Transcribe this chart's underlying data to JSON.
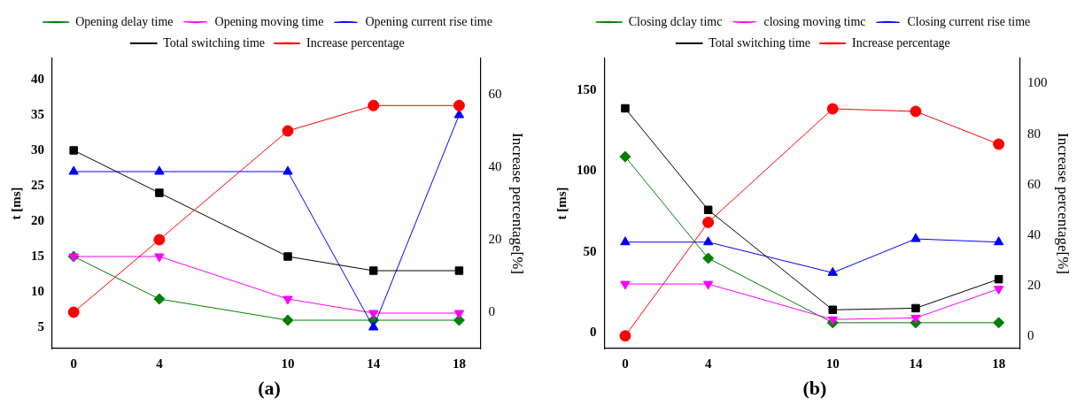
{
  "chart_data": [
    {
      "type": "line",
      "ylabel": "t [ms]",
      "y2label": "Increase percentage[%]",
      "annotations": [
        "(a)"
      ],
      "x": [
        0,
        4,
        10,
        14,
        18
      ],
      "xlim": [
        -1,
        19
      ],
      "xticks": [
        0,
        4,
        10,
        14,
        18
      ],
      "ylim": [
        2,
        43
      ],
      "yticks": [
        5,
        10,
        15,
        20,
        25,
        30,
        35,
        40
      ],
      "y2lim": [
        -10,
        70
      ],
      "y2ticks": [
        0,
        20,
        40,
        60
      ],
      "legend": "top",
      "grid": false,
      "series": [
        {
          "name": "Opening delay time",
          "color": "#008000",
          "marker": "diamond",
          "values": [
            15,
            9,
            6,
            6,
            6
          ]
        },
        {
          "name": "Opening moving time",
          "color": "#ff00ff",
          "marker": "triangle-down",
          "values": [
            15,
            15,
            9,
            7,
            7
          ]
        },
        {
          "name": "Opening current rise time",
          "color": "#0000ff",
          "marker": "triangle",
          "values": [
            27,
            27,
            27,
            5,
            35
          ]
        },
        {
          "name": "Total switching time",
          "color": "#000000",
          "marker": "square",
          "values": [
            30,
            24,
            15,
            13,
            13
          ]
        },
        {
          "name": "Increase percentage",
          "color": "#ff0000",
          "marker": "circle",
          "axis": "y2",
          "values": [
            0,
            20,
            50,
            57,
            57
          ]
        }
      ]
    },
    {
      "type": "line",
      "ylabel": "t [ms]",
      "y2label": "Increase percentage[%]",
      "annotations": [
        "(b)"
      ],
      "x": [
        0,
        4,
        10,
        14,
        18
      ],
      "xlim": [
        -1,
        19
      ],
      "xticks": [
        0,
        4,
        10,
        14,
        18
      ],
      "ylim": [
        -10,
        170
      ],
      "yticks": [
        0,
        50,
        100,
        150
      ],
      "y2lim": [
        -5,
        110
      ],
      "y2ticks": [
        0,
        20,
        40,
        60,
        80,
        100
      ],
      "legend": "top",
      "grid": false,
      "series": [
        {
          "name": "Closing dclay timc",
          "color": "#008000",
          "marker": "diamond",
          "values": [
            109,
            46,
            6,
            6,
            6
          ]
        },
        {
          "name": "closing moving timc",
          "color": "#ff00ff",
          "marker": "triangle-down",
          "values": [
            30,
            30,
            8,
            9,
            27
          ]
        },
        {
          "name": "Closing current rise time",
          "color": "#0000ff",
          "marker": "triangle",
          "values": [
            56,
            56,
            37,
            58,
            56
          ]
        },
        {
          "name": "Total switching time",
          "color": "#000000",
          "marker": "square",
          "values": [
            139,
            76,
            14,
            15,
            33
          ]
        },
        {
          "name": "Increase percentage",
          "color": "#ff0000",
          "marker": "circle",
          "axis": "y2",
          "values": [
            0,
            45,
            90,
            89,
            76
          ]
        }
      ]
    }
  ]
}
